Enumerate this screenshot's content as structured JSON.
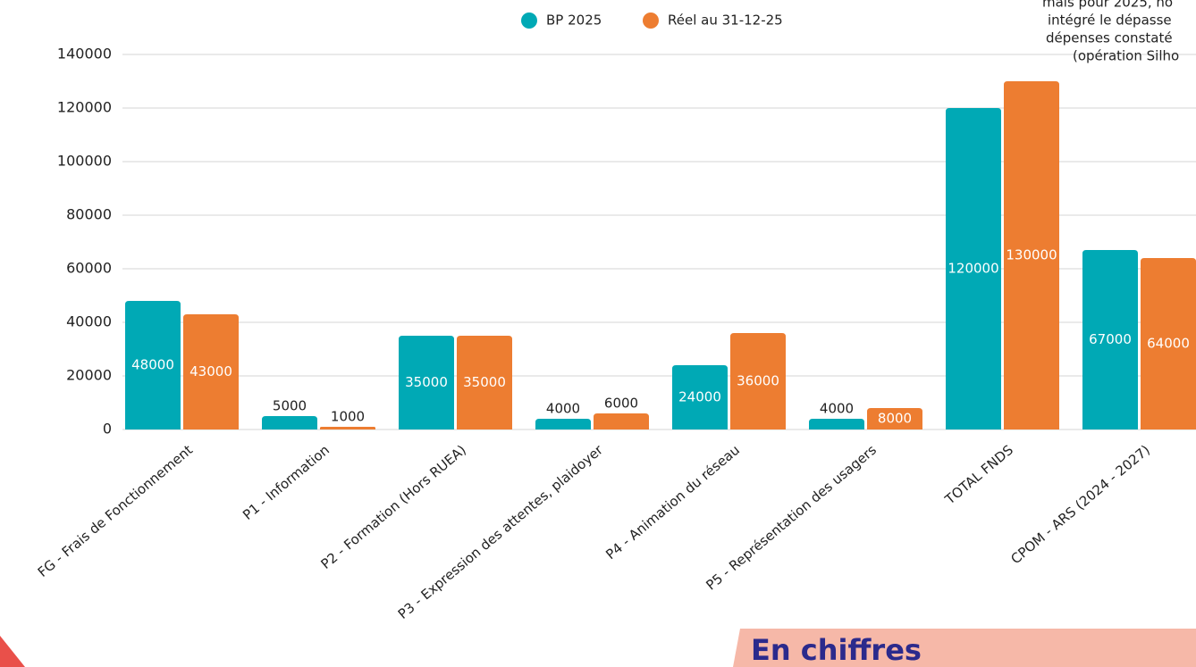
{
  "chart_data": {
    "type": "bar",
    "categories": [
      "FG - Frais de Fonctionnement",
      "P1 - Information",
      "P2 - Formation (Hors RUEA)",
      "P3 - Expression des attentes, plaidoyer",
      "P4 - Animation du réseau",
      "P5 - Représentation des usagers",
      "TOTAL FNDS",
      "CPOM - ARS (2024 - 2027)"
    ],
    "series": [
      {
        "name": "BP 2025",
        "color": "#00a9b5",
        "values": [
          48000,
          5000,
          35000,
          4000,
          24000,
          4000,
          120000,
          67000
        ]
      },
      {
        "name": "Réel au 31-12-25",
        "color": "#ed7d31",
        "values": [
          43000,
          1000,
          35000,
          6000,
          36000,
          8000,
          130000,
          64000
        ]
      }
    ],
    "ylim": [
      0,
      140000
    ],
    "yticks": [
      0,
      20000,
      40000,
      60000,
      80000,
      100000,
      120000,
      140000
    ],
    "grid": true,
    "legend": "top",
    "annotation": [
      "mais pour 2025, no",
      "intégré le dépasse",
      "dépenses constaté",
      "(opération Silho"
    ]
  },
  "banner": "En chiffres"
}
